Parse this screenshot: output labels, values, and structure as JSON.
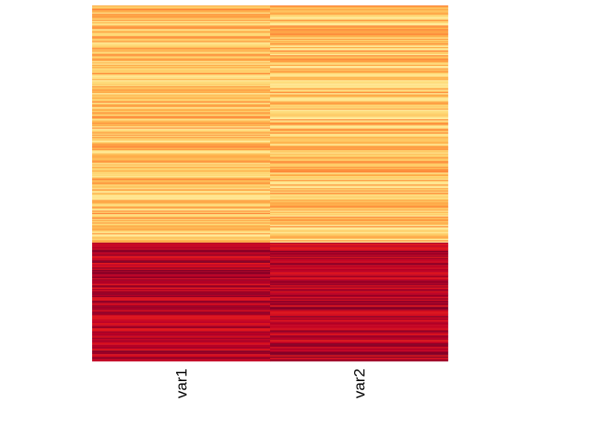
{
  "chart_data": {
    "type": "heatmap",
    "columns": [
      "var1",
      "var2"
    ],
    "row_count": 300,
    "row_groups": [
      {
        "rows": [
          1,
          200
        ],
        "intensity": "low",
        "value_range": [
          0.0,
          0.45
        ]
      },
      {
        "rows": [
          201,
          300
        ],
        "intensity": "high",
        "value_range": [
          0.7,
          1.0
        ]
      }
    ],
    "color_scale": {
      "name": "YlOrRd-like",
      "stops": [
        "#ffeda0",
        "#fed976",
        "#feb24c",
        "#fd8d3c",
        "#fc4e2a",
        "#e31a1c",
        "#bd0026",
        "#800026"
      ]
    },
    "legend": "none",
    "grid": false
  }
}
